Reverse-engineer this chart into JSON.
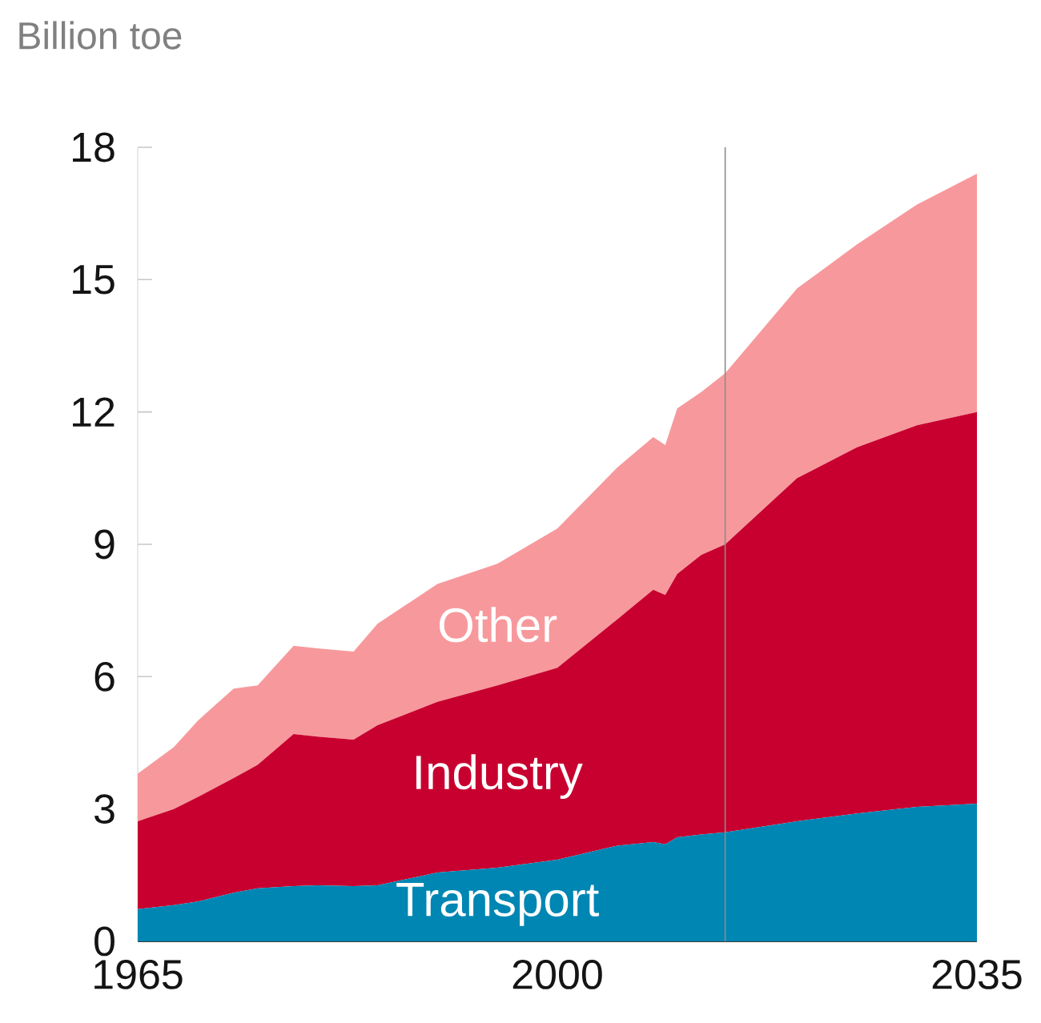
{
  "chart_data": {
    "type": "area",
    "stacked": true,
    "ylabel": "Billion toe",
    "x": [
      1965,
      1968,
      1970,
      1973,
      1975,
      1978,
      1980,
      1983,
      1985,
      1990,
      1995,
      2000,
      2005,
      2008,
      2009,
      2010,
      2012,
      2014,
      2020,
      2025,
      2030,
      2035
    ],
    "series": [
      {
        "name": "Transport",
        "color": "#0086b3",
        "values": [
          0.73,
          0.82,
          0.9,
          1.1,
          1.2,
          1.25,
          1.27,
          1.25,
          1.27,
          1.56,
          1.67,
          1.85,
          2.17,
          2.25,
          2.2,
          2.36,
          2.42,
          2.47,
          2.72,
          2.9,
          3.05,
          3.12
        ]
      },
      {
        "name": "Industry",
        "color": "#c8002f",
        "values": [
          1.99,
          2.18,
          2.37,
          2.6,
          2.8,
          3.45,
          3.37,
          3.32,
          3.63,
          3.87,
          4.13,
          4.35,
          5.13,
          5.72,
          5.65,
          5.97,
          6.34,
          6.53,
          7.78,
          8.3,
          8.65,
          8.88
        ]
      },
      {
        "name": "Other",
        "color": "#f7999c",
        "values": [
          1.08,
          1.4,
          1.73,
          2.03,
          1.8,
          2.0,
          2.0,
          2.0,
          2.3,
          2.67,
          2.76,
          3.16,
          3.44,
          3.46,
          3.4,
          3.75,
          3.69,
          3.88,
          4.3,
          4.6,
          5.0,
          5.4
        ]
      }
    ],
    "xlim": [
      1965,
      2035
    ],
    "xticks": [
      1965,
      2000,
      2035
    ],
    "ylim": [
      0,
      18
    ],
    "yticks": [
      0,
      3,
      6,
      9,
      12,
      15,
      18
    ],
    "ref_lines": [
      {
        "axis": "x",
        "value": 2014,
        "color": "#8c8c8c"
      }
    ],
    "grid": false,
    "legend": false
  }
}
